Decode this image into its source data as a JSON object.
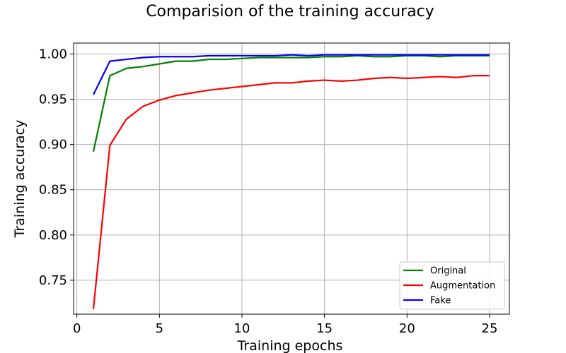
{
  "chart_data": {
    "type": "line",
    "title": "Comparision of the training accuracy",
    "xlabel": "Training epochs",
    "ylabel": "Training accuracy",
    "xlim": [
      -0.2,
      26.2
    ],
    "ylim": [
      0.7125,
      1.012
    ],
    "xticks": [
      0,
      5,
      10,
      15,
      20,
      25
    ],
    "xtick_labels": [
      "0",
      "5",
      "10",
      "15",
      "20",
      "25"
    ],
    "yticks": [
      0.75,
      0.8,
      0.85,
      0.9,
      0.95,
      1.0
    ],
    "ytick_labels": [
      "0.75",
      "0.80",
      "0.85",
      "0.90",
      "0.95",
      "1.00"
    ],
    "grid": true,
    "legend_position": "lower-right",
    "x": [
      1,
      2,
      3,
      4,
      5,
      6,
      7,
      8,
      9,
      10,
      11,
      12,
      13,
      14,
      15,
      16,
      17,
      18,
      19,
      20,
      21,
      22,
      23,
      24,
      25
    ],
    "series": [
      {
        "name": "Original",
        "color": "#008000",
        "values": [
          0.892,
          0.976,
          0.984,
          0.986,
          0.989,
          0.992,
          0.992,
          0.994,
          0.994,
          0.995,
          0.996,
          0.996,
          0.996,
          0.996,
          0.997,
          0.997,
          0.998,
          0.997,
          0.997,
          0.998,
          0.998,
          0.997,
          0.998,
          0.998,
          0.998
        ]
      },
      {
        "name": "Augmentation",
        "color": "#ff0000",
        "values": [
          0.718,
          0.899,
          0.928,
          0.942,
          0.949,
          0.954,
          0.957,
          0.96,
          0.962,
          0.964,
          0.966,
          0.968,
          0.968,
          0.97,
          0.971,
          0.97,
          0.971,
          0.973,
          0.974,
          0.973,
          0.974,
          0.975,
          0.974,
          0.976,
          0.976
        ]
      },
      {
        "name": "Fake",
        "color": "#0000ff",
        "values": [
          0.955,
          0.992,
          0.994,
          0.996,
          0.997,
          0.997,
          0.997,
          0.998,
          0.998,
          0.998,
          0.998,
          0.998,
          0.999,
          0.998,
          0.999,
          0.999,
          0.999,
          0.999,
          0.999,
          0.999,
          0.999,
          0.999,
          0.999,
          0.999,
          0.999
        ]
      }
    ]
  }
}
